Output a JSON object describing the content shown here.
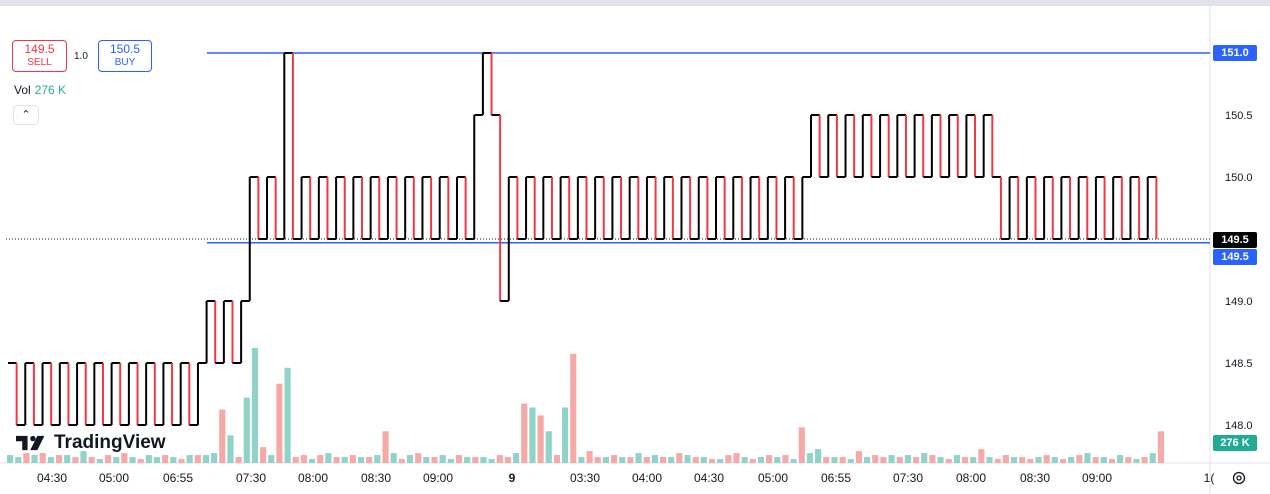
{
  "chart_data": {
    "type": "line",
    "style": "kagi",
    "y_axis": {
      "ticks": [
        "151.0",
        "150.5",
        "150.0",
        "149.5",
        "149.0",
        "148.5",
        "148.0"
      ],
      "ylim": [
        147.7,
        151.3
      ],
      "position": "right"
    },
    "x_axis": {
      "ticks": [
        "04:30",
        "05:00",
        "06:55",
        "07:30",
        "08:00",
        "08:30",
        "09:00",
        "9",
        "03:30",
        "04:00",
        "04:30",
        "05:00",
        "06:55",
        "07:30",
        "08:00",
        "08:30",
        "09:00",
        "1("
      ]
    },
    "horizontal_lines": [
      {
        "value": 151.0,
        "label": "151.0",
        "color": "#2962ff"
      },
      {
        "value": 149.47,
        "label": "149.5",
        "color": "#2962ff"
      }
    ],
    "last_price": {
      "value": 149.5,
      "label": "149.5"
    },
    "volume_label": "276 K",
    "series": [
      {
        "values": [
          148.5,
          148.0,
          148.5,
          148.0,
          148.5,
          148.0,
          148.5,
          148.0,
          148.5,
          148.0,
          148.5,
          148.0,
          148.5,
          148.0,
          148.5,
          148.0,
          148.5,
          148.0,
          148.5,
          148.0,
          148.5,
          148.0,
          148.5,
          149.0,
          148.5,
          149.0,
          148.5,
          149.0,
          150.0,
          149.5,
          150.0,
          149.5,
          151.0,
          149.5,
          150.0,
          149.5,
          150.0,
          149.5,
          150.0,
          149.5,
          150.0,
          149.5,
          150.0,
          149.5,
          150.0,
          149.5,
          150.0,
          149.5,
          150.0,
          149.5,
          150.0,
          149.5,
          150.0,
          149.5,
          150.5,
          151.0,
          150.5,
          149.0,
          150.0,
          149.5,
          150.0,
          149.5,
          150.0,
          149.5,
          150.0,
          149.5,
          150.0,
          149.5,
          150.0,
          149.5,
          150.0,
          149.5,
          150.0,
          149.5,
          150.0,
          149.5,
          150.0,
          149.5,
          150.0,
          149.5,
          150.0,
          149.5,
          150.0,
          149.5,
          150.0,
          149.5,
          150.0,
          149.5,
          150.0,
          149.5,
          150.0,
          149.5,
          150.0,
          150.5,
          150.0,
          150.5,
          150.0,
          150.5,
          150.0,
          150.5,
          150.0,
          150.5,
          150.0,
          150.5,
          150.0,
          150.5,
          150.0,
          150.5,
          150.0,
          150.5,
          150.0,
          150.5,
          150.0,
          150.5,
          150.0,
          149.5,
          150.0,
          149.5,
          150.0,
          149.5,
          150.0,
          149.5,
          150.0,
          149.5,
          150.0,
          149.5,
          150.0,
          149.5,
          150.0,
          149.5,
          150.0,
          149.5,
          150.0,
          149.5
        ]
      }
    ],
    "volume": [
      4,
      3,
      5,
      4,
      5,
      3,
      4,
      4,
      3,
      6,
      3,
      2,
      4,
      3,
      5,
      3,
      2,
      4,
      3,
      4,
      3,
      2,
      4,
      4,
      4,
      5,
      27,
      14,
      3,
      33,
      58,
      8,
      4,
      40,
      48,
      3,
      4,
      2,
      4,
      5,
      3,
      3,
      4,
      3,
      3,
      4,
      16,
      5,
      2,
      4,
      5,
      3,
      3,
      4,
      2,
      4,
      3,
      3,
      3,
      2,
      4,
      3,
      5,
      30,
      28,
      24,
      16,
      4,
      28,
      55,
      3,
      6,
      3,
      3,
      4,
      3,
      3,
      5,
      3,
      4,
      3,
      3,
      5,
      4,
      3,
      3,
      2,
      2,
      4,
      5,
      3,
      2,
      3,
      4,
      3,
      4,
      2,
      18,
      5,
      7,
      3,
      3,
      3,
      2,
      6,
      3,
      4,
      3,
      4,
      3,
      4,
      3,
      5,
      4,
      3,
      2,
      4,
      3,
      3,
      7,
      3,
      2,
      4,
      3,
      3,
      2,
      3,
      4,
      3,
      2,
      3,
      4,
      5,
      3,
      3,
      2,
      4,
      3,
      2,
      3,
      5,
      16
    ]
  },
  "trade": {
    "sell_price": "149.5",
    "sell_label": "SELL",
    "qty": "1.0",
    "buy_price": "150.5",
    "buy_label": "BUY"
  },
  "vol_legend": {
    "label": "Vol",
    "value": "276 K"
  },
  "logo_text": "TradingView",
  "colors": {
    "up": "#000000",
    "down": "#f23645",
    "line": "#2962ff",
    "vol_up": "#22ab94",
    "vol_down": "#f23645"
  }
}
